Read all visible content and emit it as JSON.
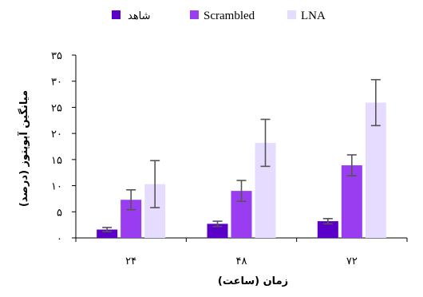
{
  "chart_data": {
    "type": "bar",
    "title": "",
    "xlabel": "زمان (ساعت)",
    "ylabel": "میانگین آپوپتوز (درصد)",
    "ylim": [
      0,
      35
    ],
    "y_ticks": [
      0,
      5,
      10,
      15,
      20,
      25,
      30,
      35
    ],
    "y_tick_labels": [
      "۰",
      "۵",
      "۱۰",
      "۱۵",
      "۲۰",
      "۲۵",
      "۳۰",
      "۳۵"
    ],
    "categories": [
      "۲۴",
      "۴۸",
      "۷۲"
    ],
    "legend_position": "top",
    "series": [
      {
        "name": "شاهد",
        "color": "#5a00c8",
        "values": [
          1.6,
          2.7,
          3.2
        ],
        "errors": [
          0.4,
          0.5,
          0.5
        ]
      },
      {
        "name": "Scrambled",
        "color": "#9a3cf0",
        "values": [
          7.3,
          9.0,
          13.9
        ],
        "errors": [
          1.9,
          2.0,
          2.0
        ]
      },
      {
        "name": "LNA",
        "color": "#e6dcff",
        "values": [
          10.3,
          18.2,
          25.9
        ],
        "errors": [
          4.5,
          4.5,
          4.4
        ]
      }
    ],
    "grid": false
  }
}
